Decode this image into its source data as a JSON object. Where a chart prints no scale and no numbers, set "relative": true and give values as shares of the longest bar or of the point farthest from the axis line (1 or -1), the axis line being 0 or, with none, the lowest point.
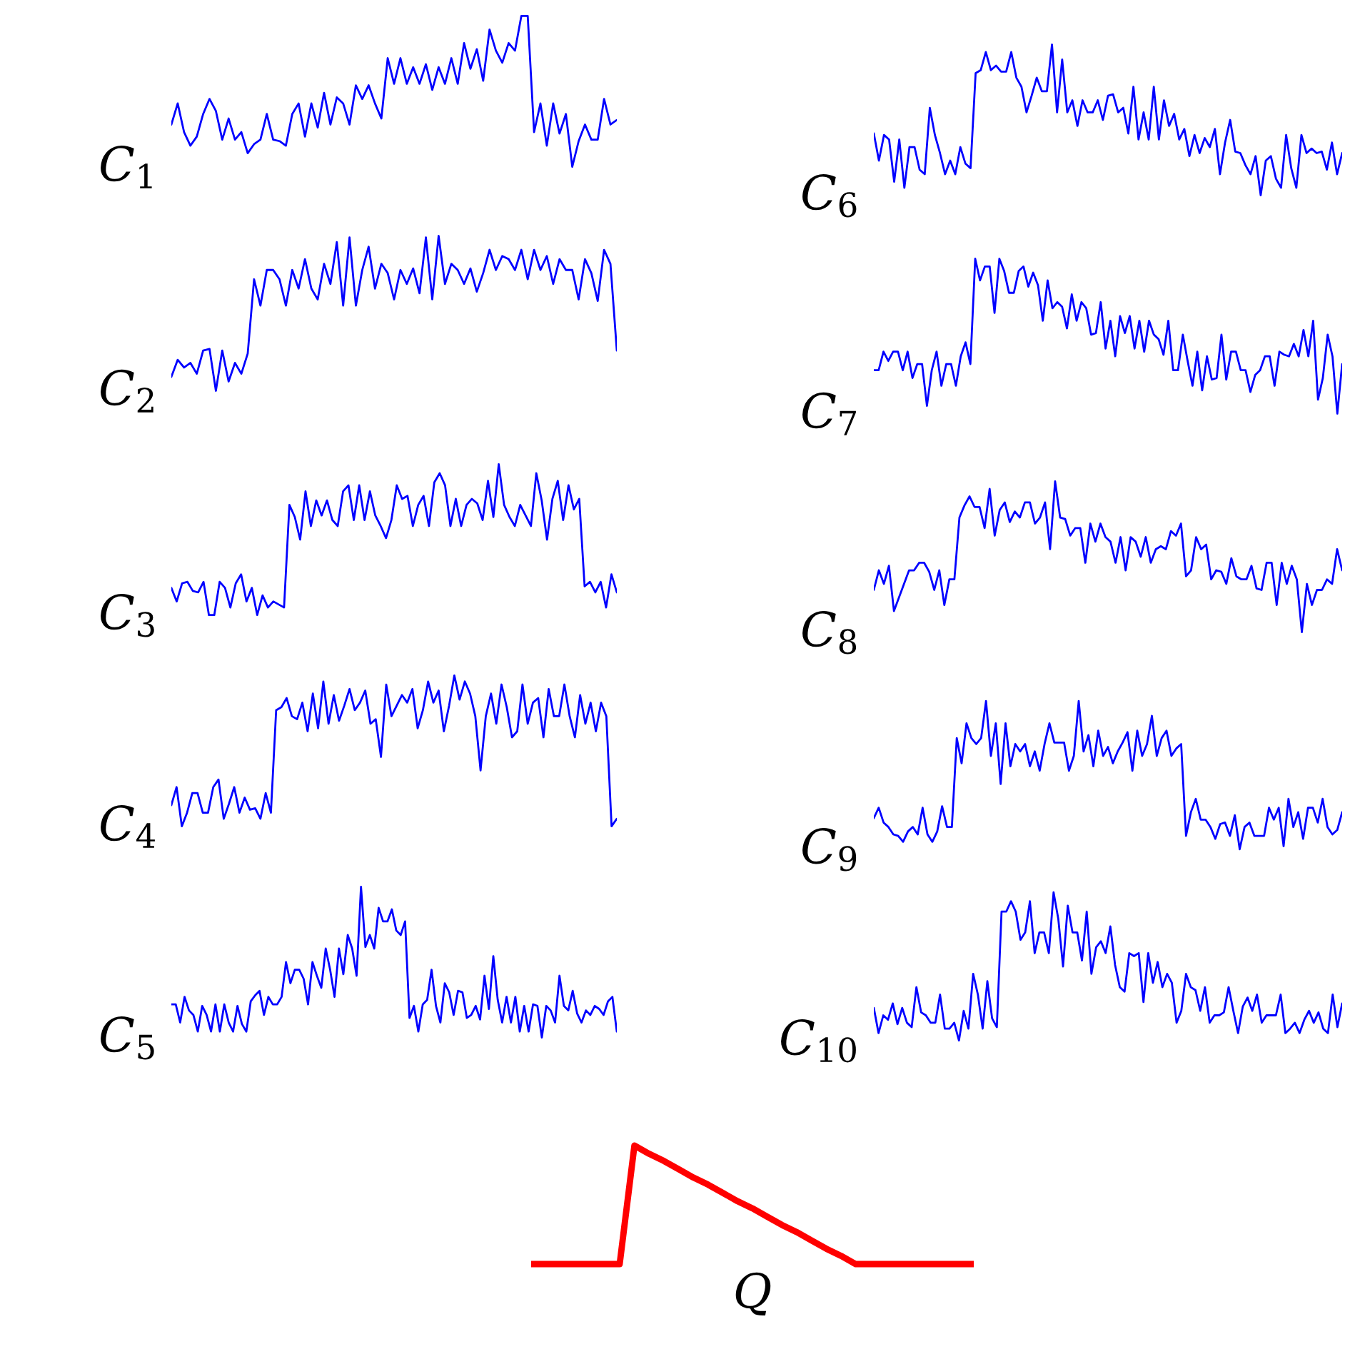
{
  "chart_data": [
    {
      "type": "line",
      "ylabel": "C$_{1}$",
      "relative": true,
      "categories": [
        null,
        null,
        null,
        null,
        null,
        null,
        null,
        null,
        null,
        null,
        null,
        null,
        null,
        null,
        null,
        null,
        null,
        null,
        null,
        null,
        null,
        null,
        null,
        null,
        null,
        null,
        null,
        null,
        null,
        null,
        null,
        null,
        null,
        null,
        null,
        null,
        null,
        null,
        null,
        null,
        null,
        null,
        null,
        null,
        null,
        null,
        null,
        null,
        null,
        null,
        null,
        null,
        null,
        null,
        null,
        null,
        null,
        null,
        null,
        null,
        null,
        null,
        null,
        null,
        null,
        null,
        null,
        null,
        null,
        null,
        null
      ],
      "series": [
        {
          "color": "#0000ff",
          "values": [
            0.28,
            0.42,
            0.23,
            0.14,
            0.2,
            0.35,
            0.45,
            0.37,
            0.18,
            0.32,
            0.18,
            0.23,
            0.09,
            0.15,
            0.18,
            0.35,
            0.18,
            0.17,
            0.14,
            0.35,
            0.42,
            0.2,
            0.42,
            0.26,
            0.49,
            0.28,
            0.46,
            0.42,
            0.28,
            0.54,
            0.45,
            0.54,
            0.42,
            0.32,
            0.72,
            0.55,
            0.72,
            0.55,
            0.66,
            0.55,
            0.68,
            0.51,
            0.66,
            0.55,
            0.72,
            0.55,
            0.82,
            0.65,
            0.78,
            0.57,
            0.91,
            0.77,
            0.69,
            0.82,
            0.77,
            1,
            1,
            0.23,
            0.42,
            0.14,
            0.42,
            0.22,
            0.35,
            0,
            0.17,
            0.28,
            0.18,
            0.18,
            0.45,
            0.28,
            0.31
          ]
        }
      ]
    },
    {
      "type": "line",
      "ylabel": "C$_{2}$",
      "relative": true,
      "categories": [
        null,
        null,
        null,
        null,
        null,
        null,
        null,
        null,
        null,
        null,
        null,
        null,
        null,
        null,
        null,
        null,
        null,
        null,
        null,
        null,
        null,
        null,
        null,
        null,
        null,
        null,
        null,
        null,
        null,
        null,
        null,
        null,
        null,
        null,
        null,
        null,
        null,
        null,
        null,
        null,
        null,
        null,
        null,
        null,
        null,
        null,
        null,
        null,
        null,
        null,
        null,
        null,
        null,
        null,
        null,
        null,
        null,
        null,
        null,
        null,
        null,
        null,
        null,
        null,
        null,
        null,
        null,
        null,
        null,
        null,
        null
      ],
      "series": [
        {
          "color": "#0000ff",
          "values": [
            0.09,
            0.2,
            0.15,
            0.18,
            0.11,
            0.26,
            0.27,
            0,
            0.26,
            0.06,
            0.18,
            0.11,
            0.24,
            0.72,
            0.55,
            0.78,
            0.78,
            0.72,
            0.55,
            0.78,
            0.66,
            0.85,
            0.66,
            0.59,
            0.82,
            0.69,
            0.96,
            0.55,
            0.99,
            0.55,
            0.78,
            0.93,
            0.66,
            0.82,
            0.76,
            0.59,
            0.78,
            0.69,
            0.79,
            0.63,
            0.99,
            0.59,
            1,
            0.69,
            0.82,
            0.78,
            0.69,
            0.79,
            0.64,
            0.76,
            0.91,
            0.78,
            0.87,
            0.85,
            0.78,
            0.91,
            0.72,
            0.91,
            0.78,
            0.87,
            0.69,
            0.85,
            0.78,
            0.78,
            0.59,
            0.85,
            0.76,
            0.58,
            0.91,
            0.82,
            0.26
          ]
        }
      ]
    },
    {
      "type": "line",
      "ylabel": "C$_{3}$",
      "relative": true,
      "categories": [
        null,
        null,
        null,
        null,
        null,
        null,
        null,
        null,
        null,
        null,
        null,
        null,
        null,
        null,
        null,
        null,
        null,
        null,
        null,
        null,
        null,
        null,
        null,
        null,
        null,
        null,
        null,
        null,
        null,
        null,
        null,
        null,
        null,
        null,
        null,
        null,
        null,
        null,
        null,
        null,
        null,
        null,
        null,
        null,
        null,
        null,
        null,
        null,
        null,
        null,
        null,
        null,
        null,
        null,
        null,
        null,
        null,
        null,
        null,
        null,
        null,
        null,
        null,
        null,
        null,
        null,
        null,
        null,
        null,
        null,
        null,
        null,
        null,
        null,
        null,
        null,
        null,
        null,
        null,
        null,
        null,
        null,
        null,
        null
      ],
      "series": [
        {
          "color": "#0000ff",
          "values": [
            0.18,
            0.09,
            0.21,
            0.22,
            0.16,
            0.15,
            0.22,
            0,
            0,
            0.22,
            0.18,
            0.05,
            0.21,
            0.27,
            0.09,
            0.18,
            0,
            0.13,
            0.05,
            0.09,
            0.07,
            0.05,
            0.73,
            0.65,
            0.5,
            0.82,
            0.59,
            0.76,
            0.66,
            0.76,
            0.63,
            0.59,
            0.82,
            0.86,
            0.63,
            0.86,
            0.63,
            0.82,
            0.66,
            0.59,
            0.51,
            0.63,
            0.86,
            0.77,
            0.79,
            0.59,
            0.73,
            0.79,
            0.59,
            0.88,
            0.94,
            0.86,
            0.59,
            0.77,
            0.59,
            0.73,
            0.77,
            0.74,
            0.63,
            0.89,
            0.65,
            1,
            0.73,
            0.65,
            0.59,
            0.73,
            0.66,
            0.59,
            0.94,
            0.76,
            0.5,
            0.77,
            0.89,
            0.63,
            0.86,
            0.7,
            0.77,
            0.19,
            0.22,
            0.15,
            0.22,
            0.05,
            0.27,
            0.15
          ]
        }
      ]
    },
    {
      "type": "line",
      "ylabel": "C$_{4}$",
      "relative": true,
      "categories": [
        null,
        null,
        null,
        null,
        null,
        null,
        null,
        null,
        null,
        null,
        null,
        null,
        null,
        null,
        null,
        null,
        null,
        null,
        null,
        null,
        null,
        null,
        null,
        null,
        null,
        null,
        null,
        null,
        null,
        null,
        null,
        null,
        null,
        null,
        null,
        null,
        null,
        null,
        null,
        null,
        null,
        null,
        null,
        null,
        null,
        null,
        null,
        null,
        null,
        null,
        null,
        null,
        null,
        null,
        null,
        null,
        null,
        null,
        null,
        null,
        null,
        null,
        null,
        null,
        null,
        null,
        null,
        null,
        null,
        null,
        null,
        null,
        null,
        null,
        null,
        null,
        null,
        null,
        null,
        null,
        null,
        null,
        null,
        null,
        null,
        null
      ],
      "series": [
        {
          "color": "#0000ff",
          "values": [
            0.14,
            0.26,
            0,
            0.09,
            0.22,
            0.22,
            0.09,
            0.09,
            0.26,
            0.31,
            0.05,
            0.15,
            0.26,
            0.09,
            0.19,
            0.11,
            0.12,
            0.05,
            0.22,
            0.09,
            0.77,
            0.79,
            0.85,
            0.73,
            0.71,
            0.82,
            0.63,
            0.88,
            0.65,
            0.96,
            0.68,
            0.87,
            0.7,
            0.8,
            0.91,
            0.77,
            0.82,
            0.9,
            0.68,
            0.71,
            0.46,
            0.94,
            0.73,
            0.8,
            0.87,
            0.82,
            0.91,
            0.65,
            0.77,
            0.96,
            0.82,
            0.9,
            0.63,
            0.8,
            1,
            0.84,
            0.96,
            0.88,
            0.73,
            0.37,
            0.73,
            0.88,
            0.68,
            0.94,
            0.79,
            0.59,
            0.63,
            0.94,
            0.68,
            0.82,
            0.85,
            0.59,
            0.91,
            0.73,
            0.73,
            0.94,
            0.73,
            0.59,
            0.87,
            0.68,
            0.82,
            0.63,
            0.82,
            0.73,
            0,
            0.05
          ]
        }
      ]
    },
    {
      "type": "line",
      "ylabel": "C$_{5}$",
      "relative": true,
      "categories": [
        null,
        null,
        null,
        null,
        null,
        null,
        null,
        null,
        null,
        null,
        null,
        null,
        null,
        null,
        null,
        null,
        null,
        null,
        null,
        null,
        null,
        null,
        null,
        null,
        null,
        null,
        null,
        null,
        null,
        null,
        null,
        null,
        null,
        null,
        null,
        null,
        null,
        null,
        null,
        null,
        null,
        null,
        null,
        null,
        null,
        null,
        null,
        null,
        null,
        null,
        null,
        null,
        null,
        null,
        null,
        null,
        null,
        null,
        null,
        null,
        null,
        null,
        null,
        null,
        null,
        null,
        null,
        null,
        null,
        null,
        null,
        null,
        null,
        null,
        null,
        null,
        null,
        null,
        null,
        null,
        null,
        null,
        null,
        null,
        null,
        null,
        null,
        null,
        null,
        null,
        null,
        null,
        null,
        null,
        null,
        null,
        null,
        null,
        null,
        null,
        null,
        null
      ],
      "series": [
        {
          "color": "#0000ff",
          "values": [
            0.22,
            0.22,
            0.1,
            0.27,
            0.18,
            0.15,
            0.04,
            0.21,
            0.15,
            0.04,
            0.22,
            0.04,
            0.22,
            0.1,
            0.04,
            0.21,
            0.09,
            0.04,
            0.24,
            0.28,
            0.31,
            0.15,
            0.27,
            0.22,
            0.22,
            0.27,
            0.5,
            0.36,
            0.45,
            0.45,
            0.39,
            0.22,
            0.5,
            0.41,
            0.33,
            0.59,
            0.45,
            0.27,
            0.59,
            0.42,
            0.68,
            0.59,
            0.41,
            1,
            0.6,
            0.68,
            0.59,
            0.86,
            0.77,
            0.77,
            0.85,
            0.71,
            0.68,
            0.77,
            0.13,
            0.21,
            0.04,
            0.22,
            0.25,
            0.45,
            0.21,
            0.1,
            0.36,
            0.3,
            0.15,
            0.31,
            0.3,
            0.13,
            0.15,
            0.21,
            0.12,
            0.41,
            0.19,
            0.54,
            0.25,
            0.1,
            0.27,
            0.1,
            0.27,
            0.04,
            0.21,
            0.04,
            0.22,
            0.21,
            0,
            0.21,
            0.18,
            0.1,
            0.41,
            0.21,
            0.18,
            0.31,
            0.16,
            0.1,
            0.18,
            0.15,
            0.21,
            0.19,
            0.15,
            0.24,
            0.27,
            0.04
          ]
        }
      ]
    },
    {
      "type": "line",
      "ylabel": "C$_{6}$",
      "relative": true,
      "categories": [
        null,
        null,
        null,
        null,
        null,
        null,
        null,
        null,
        null,
        null,
        null,
        null,
        null,
        null,
        null,
        null,
        null,
        null,
        null,
        null,
        null,
        null,
        null,
        null,
        null,
        null,
        null,
        null,
        null,
        null,
        null,
        null,
        null,
        null,
        null,
        null,
        null,
        null,
        null,
        null,
        null,
        null,
        null,
        null,
        null,
        null,
        null,
        null,
        null,
        null,
        null,
        null,
        null,
        null,
        null,
        null,
        null,
        null,
        null,
        null,
        null,
        null,
        null,
        null,
        null,
        null,
        null,
        null,
        null,
        null,
        null,
        null,
        null,
        null,
        null,
        null,
        null,
        null,
        null,
        null,
        null,
        null,
        null,
        null,
        null,
        null,
        null,
        null,
        null,
        null,
        null,
        null,
        null
      ],
      "series": [
        {
          "color": "#0000ff",
          "values": [
            0.41,
            0.23,
            0.4,
            0.37,
            0.09,
            0.37,
            0.05,
            0.32,
            0.32,
            0.17,
            0.14,
            0.58,
            0.4,
            0.28,
            0.14,
            0.23,
            0.14,
            0.32,
            0.21,
            0.18,
            0.81,
            0.83,
            0.95,
            0.83,
            0.86,
            0.82,
            0.82,
            0.95,
            0.78,
            0.72,
            0.55,
            0.66,
            0.78,
            0.69,
            0.69,
            1,
            0.55,
            0.9,
            0.55,
            0.63,
            0.46,
            0.63,
            0.55,
            0.55,
            0.63,
            0.5,
            0.66,
            0.67,
            0.55,
            0.58,
            0.41,
            0.72,
            0.37,
            0.55,
            0.37,
            0.72,
            0.37,
            0.63,
            0.46,
            0.54,
            0.37,
            0.44,
            0.26,
            0.4,
            0.28,
            0.38,
            0.32,
            0.44,
            0.14,
            0.35,
            0.5,
            0.29,
            0.28,
            0.2,
            0.14,
            0.26,
            0,
            0.23,
            0.26,
            0.11,
            0.05,
            0.4,
            0.18,
            0.05,
            0.4,
            0.28,
            0.31,
            0.28,
            0.29,
            0.17,
            0.35,
            0.14,
            0.28
          ]
        }
      ]
    },
    {
      "type": "line",
      "ylabel": "C$_{7}$",
      "relative": true,
      "categories": [
        null,
        null,
        null,
        null,
        null,
        null,
        null,
        null,
        null,
        null,
        null,
        null,
        null,
        null,
        null,
        null,
        null,
        null,
        null,
        null,
        null,
        null,
        null,
        null,
        null,
        null,
        null,
        null,
        null,
        null,
        null,
        null,
        null,
        null,
        null,
        null,
        null,
        null,
        null,
        null,
        null,
        null,
        null,
        null,
        null,
        null,
        null,
        null,
        null,
        null,
        null,
        null,
        null,
        null,
        null,
        null,
        null,
        null,
        null,
        null,
        null,
        null,
        null,
        null,
        null,
        null,
        null,
        null,
        null,
        null,
        null,
        null,
        null,
        null,
        null,
        null,
        null,
        null,
        null,
        null,
        null,
        null,
        null,
        null,
        null,
        null,
        null,
        null,
        null,
        null,
        null,
        null,
        null,
        null,
        null,
        null,
        null,
        null
      ],
      "series": [
        {
          "color": "#0000ff",
          "values": [
            0.28,
            0.28,
            0.4,
            0.34,
            0.4,
            0.4,
            0.28,
            0.4,
            0.23,
            0.32,
            0.32,
            0.05,
            0.28,
            0.4,
            0.18,
            0.32,
            0.32,
            0.18,
            0.37,
            0.46,
            0.32,
            1,
            0.86,
            0.95,
            0.95,
            0.65,
            1,
            0.92,
            0.78,
            0.78,
            0.92,
            0.95,
            0.82,
            0.91,
            0.83,
            0.6,
            0.86,
            0.68,
            0.72,
            0.69,
            0.55,
            0.77,
            0.6,
            0.72,
            0.68,
            0.51,
            0.52,
            0.72,
            0.42,
            0.6,
            0.37,
            0.63,
            0.52,
            0.63,
            0.42,
            0.6,
            0.4,
            0.6,
            0.51,
            0.48,
            0.38,
            0.6,
            0.28,
            0.28,
            0.51,
            0.34,
            0.18,
            0.4,
            0.15,
            0.37,
            0.22,
            0.23,
            0.51,
            0.22,
            0.4,
            0.4,
            0.28,
            0.28,
            0.14,
            0.25,
            0.28,
            0.37,
            0.37,
            0.18,
            0.4,
            0.38,
            0.37,
            0.45,
            0.37,
            0.54,
            0.37,
            0.6,
            0.09,
            0.23,
            0.51,
            0.37,
            0,
            0.32
          ]
        }
      ]
    },
    {
      "type": "line",
      "ylabel": "C$_{8}$",
      "relative": true,
      "categories": [
        null,
        null,
        null,
        null,
        null,
        null,
        null,
        null,
        null,
        null,
        null,
        null,
        null,
        null,
        null,
        null,
        null,
        null,
        null,
        null,
        null,
        null,
        null,
        null,
        null,
        null,
        null,
        null,
        null,
        null,
        null,
        null,
        null,
        null,
        null,
        null,
        null,
        null,
        null,
        null,
        null,
        null,
        null,
        null,
        null,
        null,
        null,
        null,
        null,
        null,
        null,
        null,
        null,
        null,
        null,
        null,
        null,
        null,
        null,
        null,
        null,
        null,
        null,
        null,
        null,
        null,
        null,
        null,
        null,
        null,
        null,
        null,
        null,
        null,
        null,
        null,
        null,
        null,
        null,
        null,
        null,
        null,
        null,
        null,
        null,
        null,
        null,
        null,
        null,
        null,
        null,
        null,
        null,
        null
      ],
      "series": [
        {
          "color": "#0000ff",
          "values": [
            0.28,
            0.41,
            0.32,
            0.44,
            0.14,
            0.23,
            0.32,
            0.41,
            0.41,
            0.46,
            0.46,
            0.4,
            0.28,
            0.41,
            0.18,
            0.35,
            0.35,
            0.76,
            0.84,
            0.9,
            0.83,
            0.83,
            0.69,
            0.95,
            0.64,
            0.81,
            0.86,
            0.73,
            0.8,
            0.76,
            0.86,
            0.86,
            0.72,
            0.76,
            0.86,
            0.55,
            1,
            0.76,
            0.75,
            0.64,
            0.69,
            0.69,
            0.46,
            0.72,
            0.6,
            0.72,
            0.63,
            0.6,
            0.46,
            0.63,
            0.41,
            0.63,
            0.6,
            0.5,
            0.63,
            0.46,
            0.55,
            0.57,
            0.55,
            0.67,
            0.64,
            0.72,
            0.37,
            0.41,
            0.63,
            0.55,
            0.58,
            0.35,
            0.41,
            0.4,
            0.32,
            0.49,
            0.37,
            0.35,
            0.35,
            0.44,
            0.29,
            0.28,
            0.46,
            0.46,
            0.18,
            0.46,
            0.32,
            0.44,
            0.35,
            0,
            0.32,
            0.18,
            0.28,
            0.28,
            0.35,
            0.32,
            0.55,
            0.41
          ]
        }
      ]
    },
    {
      "type": "line",
      "ylabel": "C$_{9}$",
      "relative": true,
      "categories": [
        null,
        null,
        null,
        null,
        null,
        null,
        null,
        null,
        null,
        null,
        null,
        null,
        null,
        null,
        null,
        null,
        null,
        null,
        null,
        null,
        null,
        null,
        null,
        null,
        null,
        null,
        null,
        null,
        null,
        null,
        null,
        null,
        null,
        null,
        null,
        null,
        null,
        null,
        null,
        null,
        null,
        null,
        null,
        null,
        null,
        null,
        null,
        null,
        null,
        null,
        null,
        null,
        null,
        null,
        null,
        null,
        null,
        null,
        null,
        null,
        null,
        null,
        null,
        null,
        null,
        null,
        null,
        null,
        null,
        null,
        null,
        null,
        null,
        null,
        null,
        null,
        null,
        null,
        null,
        null,
        null,
        null,
        null,
        null,
        null,
        null,
        null,
        null,
        null,
        null,
        null,
        null,
        null,
        null,
        null,
        null,
        null
      ],
      "series": [
        {
          "color": "#0000ff",
          "values": [
            0.21,
            0.28,
            0.18,
            0.15,
            0.1,
            0.09,
            0.05,
            0.12,
            0.15,
            0.1,
            0.28,
            0.1,
            0.05,
            0.12,
            0.29,
            0.15,
            0.15,
            0.75,
            0.58,
            0.85,
            0.75,
            0.71,
            0.75,
            1,
            0.63,
            0.85,
            0.44,
            0.85,
            0.56,
            0.71,
            0.66,
            0.71,
            0.56,
            0.66,
            0.53,
            0.71,
            0.85,
            0.72,
            0.72,
            0.72,
            0.53,
            0.63,
            1,
            0.66,
            0.77,
            0.56,
            0.8,
            0.63,
            0.69,
            0.58,
            0.66,
            0.72,
            0.79,
            0.53,
            0.8,
            0.63,
            0.71,
            0.9,
            0.63,
            0.75,
            0.8,
            0.63,
            0.68,
            0.71,
            0.09,
            0.25,
            0.34,
            0.2,
            0.2,
            0.15,
            0.07,
            0.17,
            0.18,
            0.09,
            0.23,
            0,
            0.15,
            0.18,
            0.09,
            0.09,
            0.09,
            0.28,
            0.2,
            0.28,
            0.02,
            0.34,
            0.15,
            0.25,
            0.07,
            0.28,
            0.28,
            0.18,
            0.34,
            0.15,
            0.1,
            0.13,
            0.25
          ]
        }
      ]
    },
    {
      "type": "line",
      "ylabel": "C$_{10}$",
      "relative": true,
      "categories": [
        null,
        null,
        null,
        null,
        null,
        null,
        null,
        null,
        null,
        null,
        null,
        null,
        null,
        null,
        null,
        null,
        null,
        null,
        null,
        null,
        null,
        null,
        null,
        null,
        null,
        null,
        null,
        null,
        null,
        null,
        null,
        null,
        null,
        null,
        null,
        null,
        null,
        null,
        null,
        null,
        null,
        null,
        null,
        null,
        null,
        null,
        null,
        null,
        null,
        null,
        null,
        null,
        null,
        null,
        null,
        null,
        null,
        null,
        null,
        null,
        null,
        null,
        null,
        null,
        null,
        null,
        null,
        null,
        null,
        null,
        null,
        null,
        null,
        null,
        null,
        null,
        null,
        null,
        null,
        null,
        null,
        null,
        null,
        null,
        null,
        null,
        null,
        null,
        null,
        null,
        null,
        null,
        null,
        null,
        null,
        null,
        null,
        null,
        null,
        null
      ],
      "series": [
        {
          "color": "#0000ff",
          "values": [
            0.22,
            0.05,
            0.17,
            0.14,
            0.25,
            0.11,
            0.22,
            0.12,
            0.09,
            0.36,
            0.19,
            0.17,
            0.12,
            0.12,
            0.31,
            0.08,
            0.08,
            0.12,
            0,
            0.2,
            0.08,
            0.45,
            0.31,
            0.08,
            0.4,
            0.15,
            0.09,
            0.87,
            0.87,
            0.94,
            0.87,
            0.68,
            0.73,
            0.94,
            0.59,
            0.73,
            0.73,
            0.59,
            1,
            0.82,
            0.5,
            0.91,
            0.73,
            0.73,
            0.54,
            0.87,
            0.45,
            0.63,
            0.67,
            0.59,
            0.77,
            0.51,
            0.36,
            0.33,
            0.59,
            0.57,
            0.59,
            0.26,
            0.59,
            0.39,
            0.53,
            0.36,
            0.45,
            0.39,
            0.12,
            0.2,
            0.45,
            0.36,
            0.34,
            0.2,
            0.36,
            0.12,
            0.17,
            0.17,
            0.19,
            0.36,
            0.2,
            0.05,
            0.23,
            0.29,
            0.2,
            0.31,
            0.12,
            0.17,
            0.17,
            0.17,
            0.31,
            0.05,
            0.08,
            0.12,
            0.05,
            0.14,
            0.2,
            0.12,
            0.19,
            0.08,
            0.05,
            0.31,
            0.09,
            0.25
          ]
        }
      ]
    },
    {
      "type": "line",
      "xlabel": "Q",
      "relative": true,
      "categories": [
        null,
        null,
        null,
        null,
        null,
        null,
        null,
        null,
        null,
        null,
        null,
        null,
        null,
        null,
        null,
        null,
        null,
        null,
        null,
        null,
        null,
        null,
        null,
        null,
        null,
        null,
        null,
        null,
        null,
        null,
        null
      ],
      "series": [
        {
          "color": "#ff0000",
          "values": [
            0,
            0,
            0,
            0,
            0,
            0,
            0,
            1,
            0.93,
            0.87,
            0.8,
            0.73,
            0.67,
            0.6,
            0.53,
            0.47,
            0.4,
            0.33,
            0.27,
            0.2,
            0.13,
            0.07,
            0,
            0,
            0,
            0,
            0,
            0,
            0,
            0,
            0
          ]
        }
      ]
    }
  ]
}
